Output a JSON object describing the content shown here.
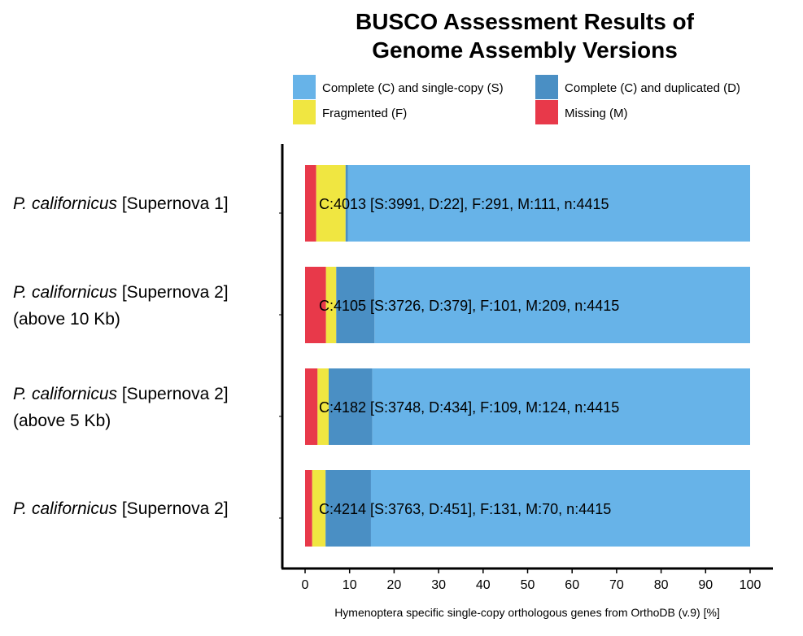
{
  "chart_data": {
    "type": "bar",
    "orientation": "horizontal",
    "stacked": true,
    "title": [
      "BUSCO Assessment Results of",
      "Genome Assembly Versions"
    ],
    "xlabel": "Hymenoptera specific single-copy orthologous genes from OrthoDB (v.9) [%]",
    "ylabel": "",
    "xlim": [
      0,
      100
    ],
    "xticks": [
      0,
      10,
      20,
      30,
      40,
      50,
      60,
      70,
      80,
      90,
      100
    ],
    "grid": false,
    "legend_position": "top",
    "series_order": [
      "Missing (M)",
      "Fragmented (F)",
      "Complete (C) and duplicated (D)",
      "Complete (C) and single-copy (S)"
    ],
    "legend": [
      {
        "label": "Complete (C) and single-copy (S)",
        "color": "#67b3e8"
      },
      {
        "label": "Complete (C) and duplicated (D)",
        "color": "#4a8fc4"
      },
      {
        "label": "Fragmented (F)",
        "color": "#f0e641"
      },
      {
        "label": "Missing (M)",
        "color": "#e8394a"
      }
    ],
    "categories": [
      {
        "name_italic": "P. californicus",
        "name_rest": " [Supernova 1]",
        "name_line2": "",
        "summary": "C:4013 [S:3991, D:22], F:291, M:111, n:4415",
        "missing": 2.5,
        "fragmented": 6.6,
        "duplicated": 0.5,
        "single": 90.4
      },
      {
        "name_italic": "P. californicus",
        "name_rest": " [Supernova 2]",
        "name_line2": "(above 10 Kb)",
        "summary": "C:4105 [S:3726, D:379], F:101, M:209, n:4415",
        "missing": 4.7,
        "fragmented": 2.3,
        "duplicated": 8.6,
        "single": 84.4
      },
      {
        "name_italic": "P. californicus",
        "name_rest": " [Supernova 2]",
        "name_line2": "(above 5 Kb)",
        "summary": "C:4182 [S:3748, D:434], F:109, M:124, n:4415",
        "missing": 2.8,
        "fragmented": 2.5,
        "duplicated": 9.8,
        "single": 84.9
      },
      {
        "name_italic": "P. californicus",
        "name_rest": " [Supernova 2]",
        "name_line2": "",
        "summary": "C:4214 [S:3763, D:451], F:131, M:70, n:4415",
        "missing": 1.6,
        "fragmented": 3.0,
        "duplicated": 10.2,
        "single": 85.2
      }
    ]
  }
}
